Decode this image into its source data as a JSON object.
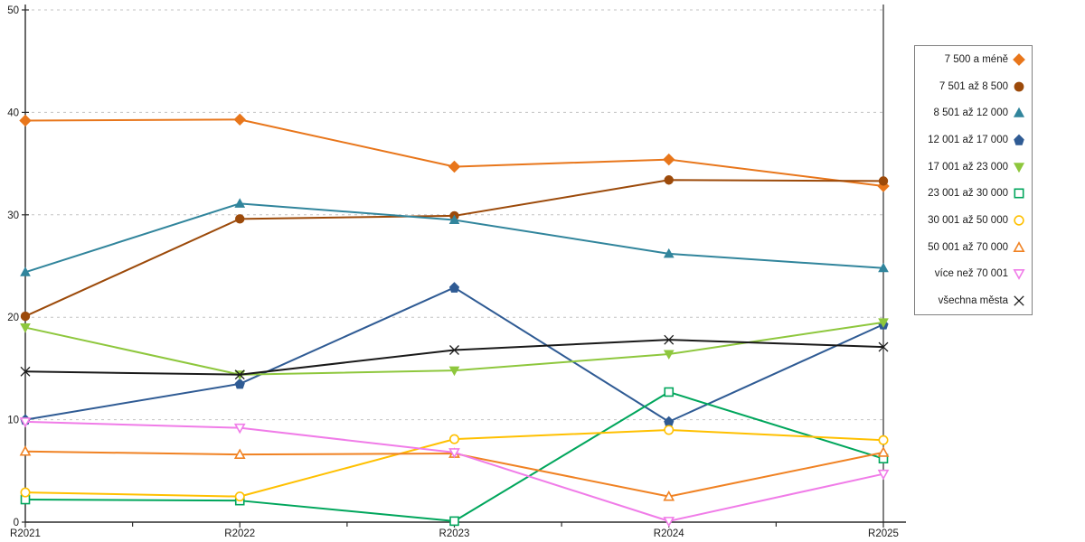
{
  "chart_data": {
    "type": "line",
    "title": "",
    "xlabel": "",
    "ylabel": "",
    "categories": [
      "R2021",
      "R2022",
      "R2023",
      "R2024",
      "R2025"
    ],
    "ylim": [
      0,
      50
    ],
    "yticks": [
      0,
      10,
      20,
      30,
      40,
      50
    ],
    "grid": "horizontal-dashed",
    "legend_position": "right",
    "series": [
      {
        "name": "7 500 a méně",
        "marker": "diamond",
        "style": "solid",
        "color": "#E8761B",
        "values": [
          39.2,
          39.3,
          34.7,
          35.4,
          32.8
        ]
      },
      {
        "name": "7 501 až 8 500",
        "marker": "circle",
        "style": "solid",
        "color": "#9C4A0A",
        "values": [
          20.1,
          29.6,
          29.9,
          33.4,
          33.3
        ]
      },
      {
        "name": "8 501 až 12 000",
        "marker": "triangle-up",
        "style": "solid",
        "color": "#31859C",
        "values": [
          24.4,
          31.1,
          29.5,
          26.2,
          24.8
        ]
      },
      {
        "name": "12 001 až 17 000",
        "marker": "pentagon",
        "style": "solid",
        "color": "#2F5B94",
        "values": [
          10.0,
          13.5,
          22.9,
          9.8,
          19.3
        ]
      },
      {
        "name": "17 001 až 23 000",
        "marker": "triangle-down",
        "style": "solid",
        "color": "#8EC73D",
        "values": [
          19.0,
          14.4,
          14.8,
          16.4,
          19.5
        ]
      },
      {
        "name": "23 001 až 30 000",
        "marker": "square",
        "style": "hollow",
        "color": "#00A65C",
        "values": [
          2.2,
          2.1,
          0.1,
          12.7,
          6.2
        ]
      },
      {
        "name": "30 001 až 50 000",
        "marker": "circle",
        "style": "hollow",
        "color": "#FFC000",
        "values": [
          2.9,
          2.5,
          8.1,
          9.0,
          8.0
        ]
      },
      {
        "name": "50 001 až 70 000",
        "marker": "triangle-up",
        "style": "hollow",
        "color": "#F08223",
        "values": [
          6.9,
          6.6,
          6.7,
          2.5,
          6.8
        ]
      },
      {
        "name": "více než 70 001",
        "marker": "triangle-down",
        "style": "hollow",
        "color": "#F07CE8",
        "values": [
          9.8,
          9.2,
          6.8,
          0.1,
          4.7
        ]
      },
      {
        "name": "všechna města",
        "marker": "x",
        "style": "line",
        "color": "#1A1A1A",
        "values": [
          14.7,
          14.4,
          16.8,
          17.8,
          17.1
        ]
      }
    ],
    "colors": {
      "axis": "#2B2B2B",
      "grid": "#C3C3C3",
      "text": "#1A1A1A",
      "background": "#FFFFFF",
      "legend_border": "#808080"
    }
  }
}
